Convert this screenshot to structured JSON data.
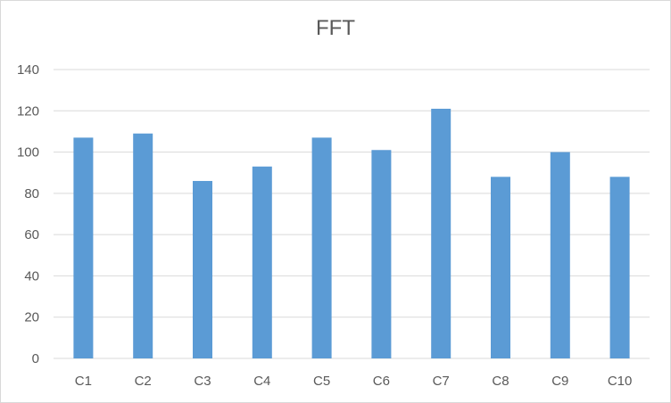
{
  "chart_data": {
    "type": "bar",
    "title": "FFT",
    "categories": [
      "C1",
      "C2",
      "C3",
      "C4",
      "C5",
      "C6",
      "C7",
      "C8",
      "C9",
      "C10"
    ],
    "values": [
      107,
      109,
      86,
      93,
      107,
      101,
      121,
      88,
      100,
      88
    ],
    "ylim": [
      0,
      140
    ],
    "yticks": [
      0,
      20,
      40,
      60,
      80,
      100,
      120,
      140
    ],
    "xlabel": "",
    "ylabel": "",
    "grid": true,
    "bar_color": "#5b9bd5",
    "grid_color": "#d9d9d9",
    "text_color": "#595959"
  }
}
